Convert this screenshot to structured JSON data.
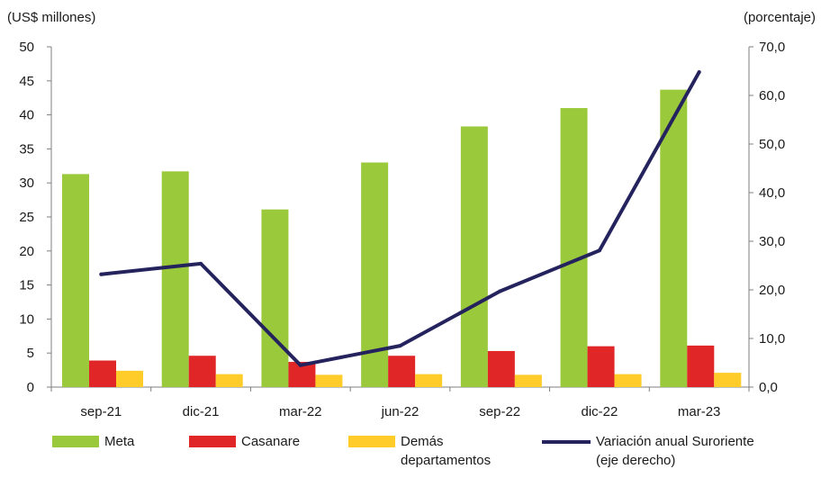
{
  "chart_data": {
    "type": "bar",
    "left_axis_unit": "(US$ millones)",
    "right_axis_unit": "(porcentaje)",
    "categories": [
      "sep-21",
      "dic-21",
      "mar-22",
      "jun-22",
      "sep-22",
      "dic-22",
      "mar-23"
    ],
    "ylim": [
      0,
      50
    ],
    "y_ticks": [
      "0",
      "5",
      "10",
      "15",
      "20",
      "25",
      "30",
      "35",
      "40",
      "45",
      "50"
    ],
    "y2lim": [
      0,
      70
    ],
    "y2_ticks": [
      "0,0",
      "10,0",
      "20,0",
      "30,0",
      "40,0",
      "50,0",
      "60,0",
      "70,0"
    ],
    "series": [
      {
        "name": "Meta",
        "type": "bar",
        "color": "#9bc93c",
        "values": [
          31.3,
          31.7,
          26.1,
          33.0,
          38.3,
          41.0,
          43.7
        ]
      },
      {
        "name": "Casanare",
        "type": "bar",
        "color": "#e02626",
        "values": [
          3.9,
          4.6,
          3.7,
          4.6,
          5.3,
          6.0,
          6.1
        ]
      },
      {
        "name": "Demás\ndepartamentos",
        "type": "bar",
        "color": "#ffcc29",
        "values": [
          2.4,
          1.9,
          1.8,
          1.9,
          1.8,
          1.9,
          2.1
        ]
      },
      {
        "name": "Variación anual Suroriente\n(eje derecho)",
        "type": "line",
        "axis": "right",
        "color": "#25235e",
        "values": [
          23.2,
          25.4,
          4.5,
          8.5,
          19.7,
          28.1,
          64.8
        ]
      }
    ],
    "grid": false,
    "legend_position": "bottom"
  }
}
